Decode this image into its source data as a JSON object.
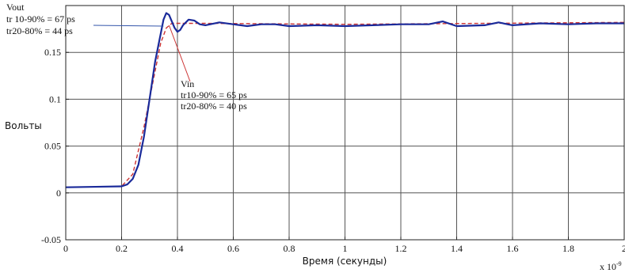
{
  "chart_data": {
    "type": "line",
    "xlabel": "Время (секунды)",
    "ylabel": "Вольты",
    "x_multiplier": "x 10",
    "x_multiplier_exp": "-9",
    "xlim": [
      0,
      2
    ],
    "ylim": [
      -0.05,
      0.2
    ],
    "grid": true,
    "x_ticks": [
      0,
      0.2,
      0.4,
      0.6,
      0.8,
      1,
      1.2,
      1.4,
      1.6,
      1.8,
      2
    ],
    "x_tick_labels": [
      "0",
      "0.2",
      "0.4",
      "0.6",
      "0.8",
      "1",
      "1.2",
      "1.4",
      "1.6",
      "1.8",
      "2"
    ],
    "y_ticks": [
      -0.05,
      0,
      0.05,
      0.1,
      0.15
    ],
    "y_tick_labels": [
      "-0.05",
      "0",
      "0.05",
      "0.1",
      "0.15"
    ],
    "series": [
      {
        "color": "#cc3333",
        "x": [
          0,
          0.2,
          0.24,
          0.28,
          0.32,
          0.34,
          0.36,
          0.38,
          0.4,
          0.45,
          0.5,
          1,
          1.5,
          2
        ],
        "y": [
          0.006,
          0.007,
          0.02,
          0.07,
          0.13,
          0.16,
          0.176,
          0.181,
          0.181,
          0.181,
          0.181,
          0.18,
          0.181,
          0.182
        ]
      },
      {
        "color": "#1a2a9a",
        "x": [
          0,
          0.2,
          0.22,
          0.24,
          0.26,
          0.28,
          0.3,
          0.32,
          0.34,
          0.35,
          0.36,
          0.37,
          0.38,
          0.39,
          0.4,
          0.41,
          0.42,
          0.44,
          0.46,
          0.48,
          0.5,
          0.55,
          0.6,
          0.65,
          0.7,
          0.75,
          0.8,
          0.9,
          1.0,
          1.1,
          1.2,
          1.3,
          1.35,
          1.4,
          1.5,
          1.55,
          1.6,
          1.7,
          1.8,
          1.9,
          2.0
        ],
        "y": [
          0.006,
          0.007,
          0.009,
          0.015,
          0.03,
          0.06,
          0.1,
          0.14,
          0.17,
          0.185,
          0.192,
          0.19,
          0.183,
          0.176,
          0.172,
          0.174,
          0.179,
          0.185,
          0.184,
          0.18,
          0.179,
          0.182,
          0.18,
          0.178,
          0.18,
          0.18,
          0.178,
          0.179,
          0.178,
          0.179,
          0.18,
          0.18,
          0.183,
          0.178,
          0.179,
          0.182,
          0.179,
          0.181,
          0.18,
          0.181,
          0.181
        ]
      }
    ],
    "annotations": [
      {
        "id": "vout",
        "lines": [
          "Vout",
          "tr 10-90% = 67 ps",
          "tr20-80% = 44 ps"
        ]
      },
      {
        "id": "vin",
        "lines": [
          "Vin",
          "tr10-90% = 65 ps",
          "tr20-80% = 40 ps"
        ]
      }
    ]
  }
}
